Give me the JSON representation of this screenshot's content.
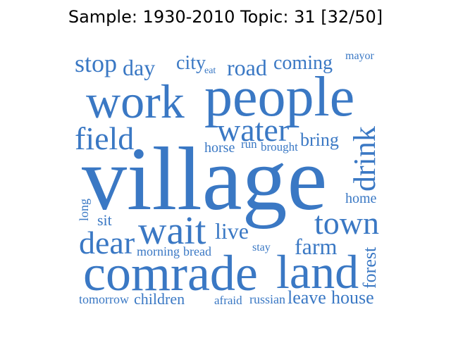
{
  "title": "Sample: 1930-2010 Topic: 31 [32/50]",
  "word_color": "#3a78c4",
  "words": {
    "village": "village",
    "people": "people",
    "comrade": "comrade",
    "land": "land",
    "work": "work",
    "wait": "wait",
    "water": "water",
    "field": "field",
    "town": "town",
    "drink": "drink",
    "dear": "dear",
    "stop": "stop",
    "day": "day",
    "road": "road",
    "farm": "farm",
    "live": "live",
    "coming": "coming",
    "city": "city",
    "bring": "bring",
    "leave": "leave",
    "house": "house",
    "forest": "forest",
    "children": "children",
    "home": "home",
    "sit": "sit",
    "horse": "horse",
    "run": "run",
    "brought": "brought",
    "morning": "morning",
    "bread": "bread",
    "tomorrow": "tomorrow",
    "afraid": "afraid",
    "russian": "russian",
    "stay": "stay",
    "long": "long",
    "mayor": "mayor",
    "eat": "eat"
  }
}
